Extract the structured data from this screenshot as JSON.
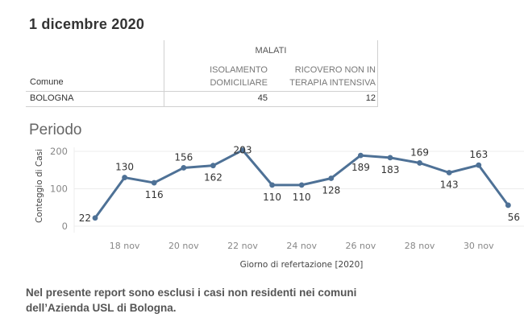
{
  "header": {
    "title": "1 dicembre 2020"
  },
  "table": {
    "group_header": "MALATI",
    "row_header_label": "Comune",
    "columns": [
      {
        "line1": "ISOLAMENTO",
        "line2": "DOMICILIARE"
      },
      {
        "line1": "RICOVERO NON IN",
        "line2": "TERAPIA INTENSIVA"
      }
    ],
    "rows": [
      {
        "comune": "BOLOGNA",
        "values": [
          "45",
          "12"
        ]
      }
    ]
  },
  "section": {
    "title": "Periodo"
  },
  "note": {
    "text": "Nel presente report sono esclusi i casi non residenti nei comuni dell’Azienda USL di Bologna."
  },
  "colors": {
    "line": "#4e7196",
    "grid": "#ececec",
    "axis_text": "#888888",
    "label_text": "#333333"
  },
  "chart_data": {
    "type": "line",
    "title": "Periodo",
    "xlabel": "Giorno di refertazione [2020]",
    "ylabel": "Conteggio di Casi",
    "ylim": [
      0,
      220
    ],
    "yticks": [
      0,
      100,
      200
    ],
    "grid": true,
    "x": [
      "17 nov",
      "18 nov",
      "19 nov",
      "20 nov",
      "21 nov",
      "22 nov",
      "23 nov",
      "24 nov",
      "25 nov",
      "26 nov",
      "27 nov",
      "28 nov",
      "29 nov",
      "30 nov",
      "1 dic"
    ],
    "xtick_labels": [
      "18 nov",
      "20 nov",
      "22 nov",
      "24 nov",
      "26 nov",
      "28 nov",
      "30 nov"
    ],
    "xtick_indices": [
      1,
      3,
      5,
      7,
      9,
      11,
      13
    ],
    "series": [
      {
        "name": "Conteggio di Casi",
        "values": [
          22,
          130,
          116,
          156,
          162,
          203,
          110,
          110,
          128,
          189,
          183,
          169,
          143,
          163,
          56
        ],
        "label_pos": [
          "left",
          "above",
          "below",
          "above",
          "below",
          "center",
          "below",
          "below",
          "below",
          "below",
          "below",
          "above",
          "below",
          "above",
          "below"
        ]
      }
    ]
  }
}
